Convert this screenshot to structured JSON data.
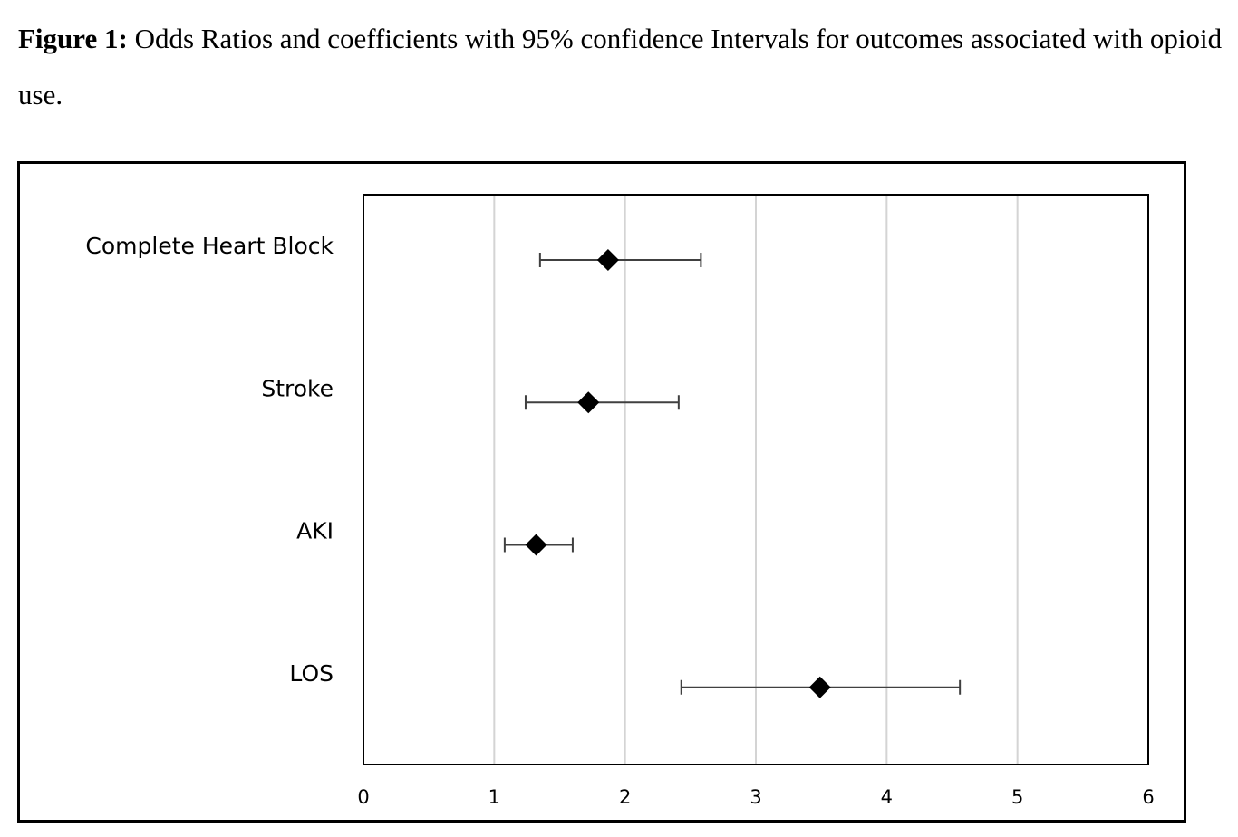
{
  "caption": {
    "label": "Figure 1:",
    "text": "Odds Ratios and coefficients with 95% confidence Intervals for outcomes associated with opioid use."
  },
  "chart_data": {
    "type": "scatter",
    "subtype": "forest-plot",
    "title": "",
    "xlabel": "",
    "ylabel": "",
    "xlim": [
      0,
      6
    ],
    "xticks": [
      "0",
      "1",
      "2",
      "3",
      "4",
      "5",
      "6"
    ],
    "grid": "vertical",
    "legend": "none",
    "marker": "diamond",
    "marker_color": "#000000",
    "errorbar_color": "#404040",
    "gridline_color": "#d4d4d4",
    "categories": [
      "Complete Heart Block",
      "Stroke",
      "AKI",
      "LOS"
    ],
    "series": [
      {
        "points": [
          {
            "category": "Complete Heart Block",
            "estimate": 1.87,
            "lower": 1.35,
            "upper": 2.58
          },
          {
            "category": "Stroke",
            "estimate": 1.72,
            "lower": 1.24,
            "upper": 2.41
          },
          {
            "category": "AKI",
            "estimate": 1.32,
            "lower": 1.08,
            "upper": 1.6
          },
          {
            "category": "LOS",
            "estimate": 3.49,
            "lower": 2.43,
            "upper": 4.56
          }
        ]
      }
    ]
  }
}
